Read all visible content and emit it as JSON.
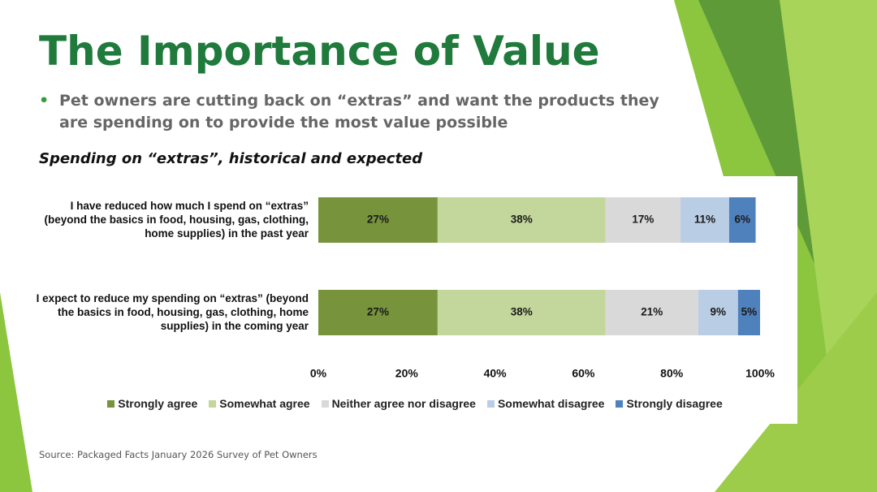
{
  "slide": {
    "title": "The Importance of Value",
    "bullet": "Pet owners are cutting back on “extras” and want the products they are spending on to provide the most value possible",
    "chart_heading": "Spending on “extras”, historical and expected",
    "source": "Source: Packaged Facts January 2026 Survey of Pet Owners"
  },
  "chart_data": {
    "type": "stacked-bar-horizontal",
    "categories": [
      "I have reduced how much I spend on “extras” (beyond the basics in food, housing, gas, clothing, home supplies) in the past year",
      "I expect to reduce my spending on “extras” (beyond the basics in food, housing, gas, clothing, home supplies) in the coming year"
    ],
    "series": [
      {
        "name": "Strongly agree",
        "color": "#77933c",
        "values": [
          27,
          27
        ],
        "value_labels": [
          "27%",
          "27%"
        ]
      },
      {
        "name": "Somewhat agree",
        "color": "#c3d69b",
        "values": [
          38,
          38
        ],
        "value_labels": [
          "38%",
          "38%"
        ]
      },
      {
        "name": "Neither agree nor disagree",
        "color": "#d9d9d9",
        "values": [
          17,
          21
        ],
        "value_labels": [
          "17%",
          "21%"
        ]
      },
      {
        "name": "Somewhat disagree",
        "color": "#b9cde5",
        "values": [
          11,
          9
        ],
        "value_labels": [
          "11%",
          "9%"
        ]
      },
      {
        "name": "Strongly disagree",
        "color": "#4f81bd",
        "values": [
          6,
          5
        ],
        "value_labels": [
          "6%",
          "5%"
        ]
      }
    ],
    "xlim": [
      0,
      100
    ],
    "xticks": [
      {
        "value": 0,
        "label": "0%"
      },
      {
        "value": 20,
        "label": "20%"
      },
      {
        "value": 40,
        "label": "40%"
      },
      {
        "value": 60,
        "label": "60%"
      },
      {
        "value": 80,
        "label": "80%"
      },
      {
        "value": 100,
        "label": "100%"
      }
    ],
    "legend": "bottom"
  }
}
